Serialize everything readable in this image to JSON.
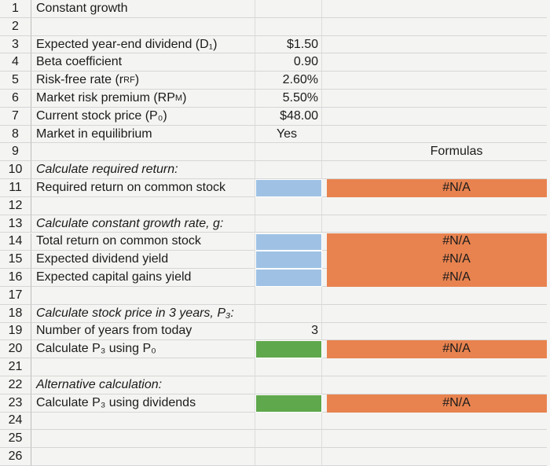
{
  "sheet": {
    "rows": [
      {
        "num": 1,
        "label": "Constant growth"
      },
      {
        "num": 2
      },
      {
        "num": 3,
        "label": "Expected year-end dividend (D₁)",
        "value": "$1.50"
      },
      {
        "num": 4,
        "label": "Beta coefficient",
        "value": "0.90"
      },
      {
        "num": 5,
        "label": "Risk-free rate (r",
        "sub": "RF",
        "tail": ")",
        "value": "2.60%"
      },
      {
        "num": 6,
        "label": "Market risk premium (RP",
        "sub": "M",
        "tail": ")",
        "value": "5.50%"
      },
      {
        "num": 7,
        "label": "Current stock price (P₀)",
        "value": "$48.00"
      },
      {
        "num": 8,
        "label": "Market in equilibrium",
        "value": "Yes",
        "value_align": "center"
      },
      {
        "num": 9,
        "formula": "Formulas"
      },
      {
        "num": 10,
        "label": "Calculate required return:",
        "italic": true
      },
      {
        "num": 11,
        "label": "Required return on common stock",
        "value_fill": "#9fc2e4",
        "formula": "#N/A",
        "formula_fill": "#e8834f"
      },
      {
        "num": 12
      },
      {
        "num": 13,
        "label": "Calculate constant growth rate, g:",
        "italic": true
      },
      {
        "num": 14,
        "label": "Total return on common stock",
        "value_fill": "#9fc2e4",
        "formula": "#N/A",
        "formula_fill": "#e8834f"
      },
      {
        "num": 15,
        "label": "Expected dividend yield",
        "value_fill": "#9fc2e4",
        "formula": "#N/A",
        "formula_fill": "#e8834f"
      },
      {
        "num": 16,
        "label": "Expected capital gains yield",
        "value_fill": "#9fc2e4",
        "formula": "#N/A",
        "formula_fill": "#e8834f"
      },
      {
        "num": 17
      },
      {
        "num": 18,
        "label": "Calculate stock price in 3 years, P₃:",
        "italic": true
      },
      {
        "num": 19,
        "label": "Number of years from today",
        "value": "3"
      },
      {
        "num": 20,
        "label": "Calculate P₃ using P₀",
        "value_fill": "#5fa84c",
        "formula": "#N/A",
        "formula_fill": "#e8834f"
      },
      {
        "num": 21
      },
      {
        "num": 22,
        "label": "Alternative calculation:",
        "italic": true
      },
      {
        "num": 23,
        "label": "Calculate P₃ using dividends",
        "value_fill": "#5fa84c",
        "formula": "#N/A",
        "formula_fill": "#e8834f"
      },
      {
        "num": 24
      },
      {
        "num": 25
      },
      {
        "num": 26
      }
    ]
  }
}
